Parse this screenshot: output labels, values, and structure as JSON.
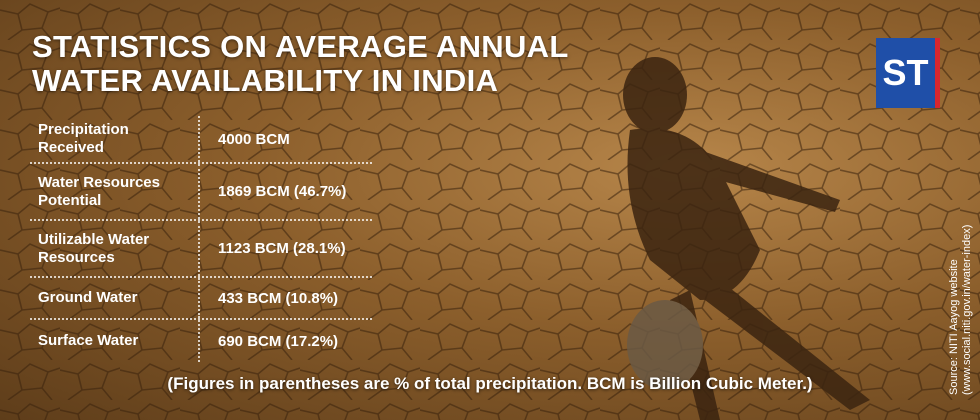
{
  "header": {
    "title_lines": [
      "STATISTICS ON AVERAGE ANNUAL",
      "WATER AVAILABILITY IN INDIA"
    ],
    "logo": "ST"
  },
  "table": {
    "rows": [
      [
        "Precipitation Received",
        "4000 BCM"
      ],
      [
        "Water Resources Potential",
        "1869 BCM (46.7%)"
      ],
      [
        "Utilizable Water Resources",
        "1123 BCM (28.1%)"
      ],
      [
        "Ground Water",
        "433 BCM (10.8%)"
      ],
      [
        "Surface Water",
        "690 BCM (17.2%)"
      ]
    ]
  },
  "footnote": "(Figures in parentheses are % of total precipitation. BCM is Billion Cubic Meter.)",
  "source": [
    "Source: NITI Aayog website",
    "(www.social.niti.gov.in/water-index)"
  ]
}
